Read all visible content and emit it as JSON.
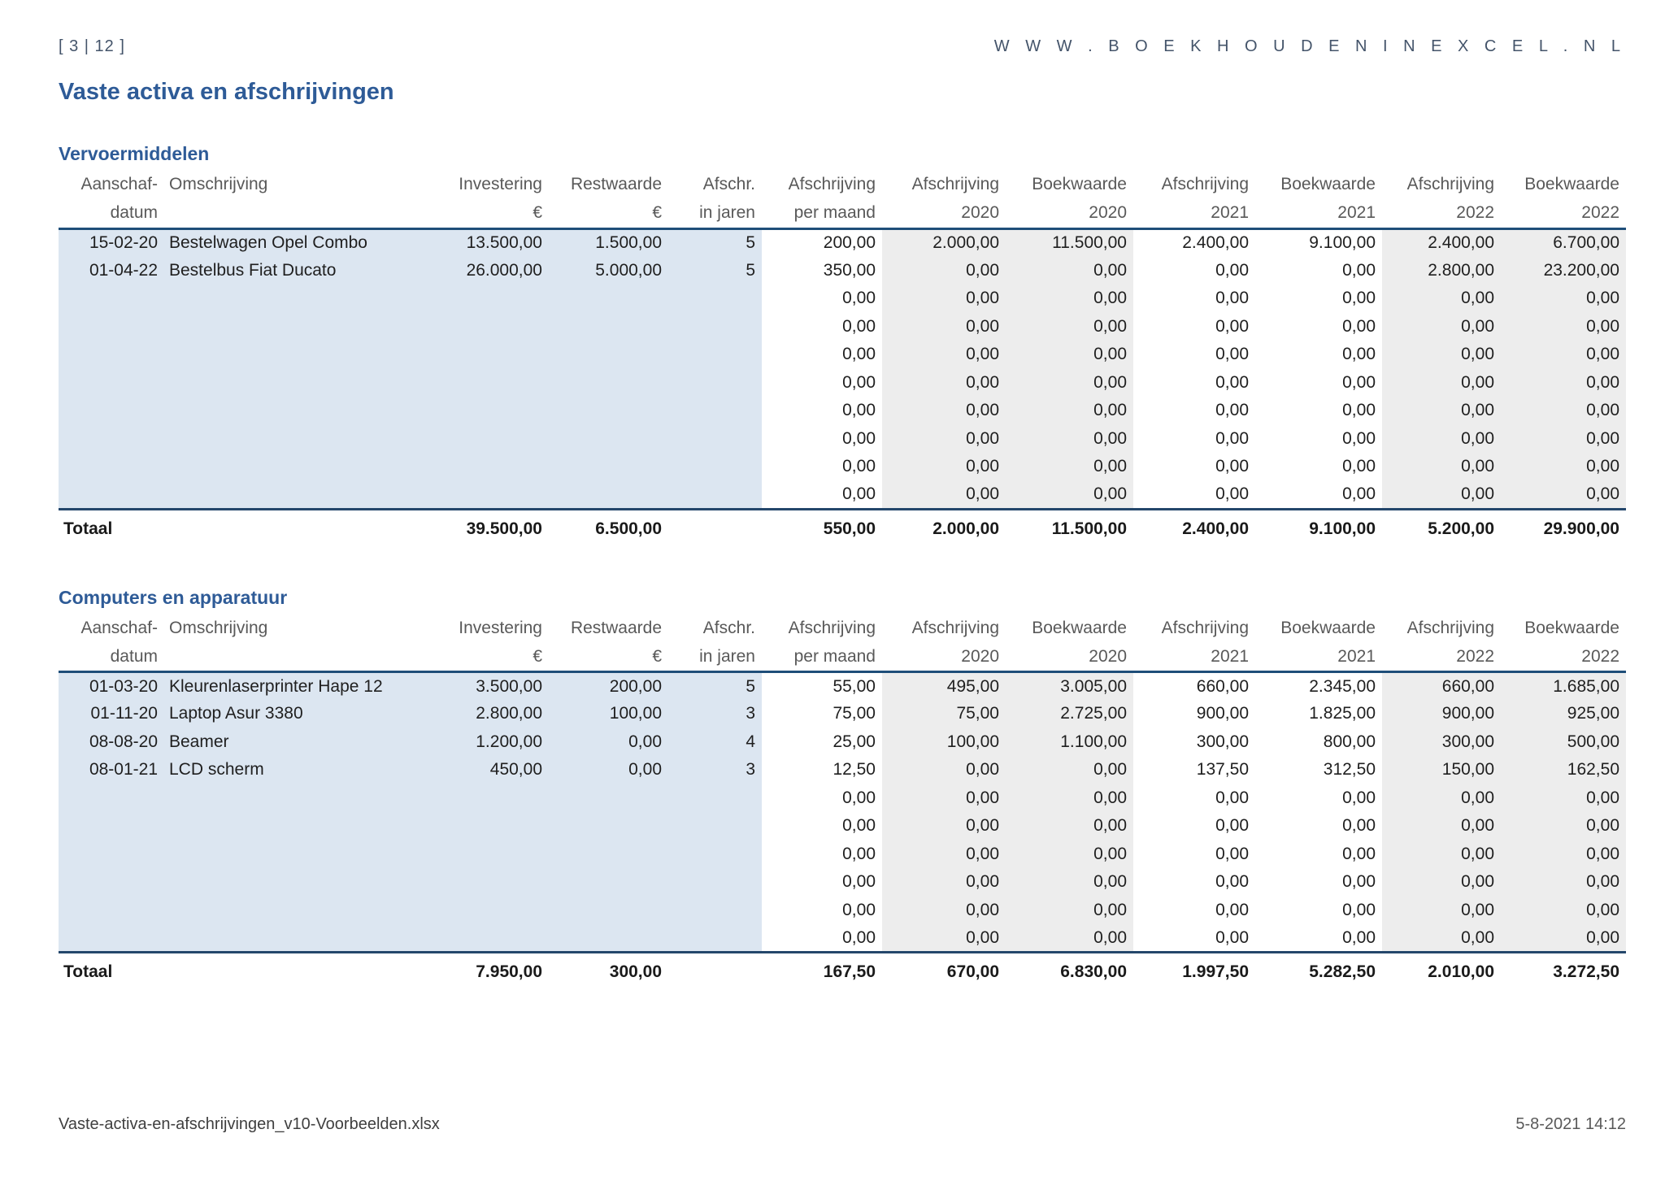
{
  "page": {
    "page_indicator": "[ 3 | 12 ]",
    "website": "W W W . B O E K H O U D E N I N E X C E L . N L",
    "title": "Vaste activa en afschrijvingen",
    "footer_left": "Vaste-activa-en-afschrijvingen_v10-Voorbeelden.xlsx",
    "footer_right": "5-8-2021 14:12"
  },
  "colors": {
    "accent_blue": "#2e5b97",
    "header_text_gray": "#595959",
    "data_text": "#1f1f1f",
    "cell_blue": "#dce6f1",
    "band_gray": "#ededed",
    "border_header": "#1f4e79",
    "border_total": "#24476b"
  },
  "table_headers": {
    "row1": [
      "Aanschaf-",
      "Omschrijving",
      "Investering",
      "Restwaarde",
      "Afschr.",
      "Afschrijving",
      "Afschrijving",
      "Boekwaarde",
      "Afschrijving",
      "Boekwaarde",
      "Afschrijving",
      "Boekwaarde"
    ],
    "row2": [
      "datum",
      "",
      "€",
      "€",
      "in jaren",
      "per maand",
      "2020",
      "2020",
      "2021",
      "2021",
      "2022",
      "2022"
    ]
  },
  "sections": [
    {
      "title": "Vervoermiddelen",
      "rows": [
        [
          "15-02-20",
          "Bestelwagen Opel Combo",
          "13.500,00",
          "1.500,00",
          "5",
          "200,00",
          "2.000,00",
          "11.500,00",
          "2.400,00",
          "9.100,00",
          "2.400,00",
          "6.700,00"
        ],
        [
          "01-04-22",
          "Bestelbus Fiat Ducato",
          "26.000,00",
          "5.000,00",
          "5",
          "350,00",
          "0,00",
          "0,00",
          "0,00",
          "0,00",
          "2.800,00",
          "23.200,00"
        ],
        [
          "",
          "",
          "",
          "",
          "",
          "0,00",
          "0,00",
          "0,00",
          "0,00",
          "0,00",
          "0,00",
          "0,00"
        ],
        [
          "",
          "",
          "",
          "",
          "",
          "0,00",
          "0,00",
          "0,00",
          "0,00",
          "0,00",
          "0,00",
          "0,00"
        ],
        [
          "",
          "",
          "",
          "",
          "",
          "0,00",
          "0,00",
          "0,00",
          "0,00",
          "0,00",
          "0,00",
          "0,00"
        ],
        [
          "",
          "",
          "",
          "",
          "",
          "0,00",
          "0,00",
          "0,00",
          "0,00",
          "0,00",
          "0,00",
          "0,00"
        ],
        [
          "",
          "",
          "",
          "",
          "",
          "0,00",
          "0,00",
          "0,00",
          "0,00",
          "0,00",
          "0,00",
          "0,00"
        ],
        [
          "",
          "",
          "",
          "",
          "",
          "0,00",
          "0,00",
          "0,00",
          "0,00",
          "0,00",
          "0,00",
          "0,00"
        ],
        [
          "",
          "",
          "",
          "",
          "",
          "0,00",
          "0,00",
          "0,00",
          "0,00",
          "0,00",
          "0,00",
          "0,00"
        ],
        [
          "",
          "",
          "",
          "",
          "",
          "0,00",
          "0,00",
          "0,00",
          "0,00",
          "0,00",
          "0,00",
          "0,00"
        ]
      ],
      "total": {
        "label": "Totaal",
        "values": [
          "39.500,00",
          "6.500,00",
          "",
          "550,00",
          "2.000,00",
          "11.500,00",
          "2.400,00",
          "9.100,00",
          "5.200,00",
          "29.900,00"
        ]
      }
    },
    {
      "title": "Computers en apparatuur",
      "rows": [
        [
          "01-03-20",
          "Kleurenlaserprinter Hape 12",
          "3.500,00",
          "200,00",
          "5",
          "55,00",
          "495,00",
          "3.005,00",
          "660,00",
          "2.345,00",
          "660,00",
          "1.685,00"
        ],
        [
          "01-11-20",
          "Laptop Asur 3380",
          "2.800,00",
          "100,00",
          "3",
          "75,00",
          "75,00",
          "2.725,00",
          "900,00",
          "1.825,00",
          "900,00",
          "925,00"
        ],
        [
          "08-08-20",
          "Beamer",
          "1.200,00",
          "0,00",
          "4",
          "25,00",
          "100,00",
          "1.100,00",
          "300,00",
          "800,00",
          "300,00",
          "500,00"
        ],
        [
          "08-01-21",
          "LCD scherm",
          "450,00",
          "0,00",
          "3",
          "12,50",
          "0,00",
          "0,00",
          "137,50",
          "312,50",
          "150,00",
          "162,50"
        ],
        [
          "",
          "",
          "",
          "",
          "",
          "0,00",
          "0,00",
          "0,00",
          "0,00",
          "0,00",
          "0,00",
          "0,00"
        ],
        [
          "",
          "",
          "",
          "",
          "",
          "0,00",
          "0,00",
          "0,00",
          "0,00",
          "0,00",
          "0,00",
          "0,00"
        ],
        [
          "",
          "",
          "",
          "",
          "",
          "0,00",
          "0,00",
          "0,00",
          "0,00",
          "0,00",
          "0,00",
          "0,00"
        ],
        [
          "",
          "",
          "",
          "",
          "",
          "0,00",
          "0,00",
          "0,00",
          "0,00",
          "0,00",
          "0,00",
          "0,00"
        ],
        [
          "",
          "",
          "",
          "",
          "",
          "0,00",
          "0,00",
          "0,00",
          "0,00",
          "0,00",
          "0,00",
          "0,00"
        ],
        [
          "",
          "",
          "",
          "",
          "",
          "0,00",
          "0,00",
          "0,00",
          "0,00",
          "0,00",
          "0,00",
          "0,00"
        ]
      ],
      "total": {
        "label": "Totaal",
        "values": [
          "7.950,00",
          "300,00",
          "",
          "167,50",
          "670,00",
          "6.830,00",
          "1.997,50",
          "5.282,50",
          "2.010,00",
          "3.272,50"
        ]
      }
    }
  ]
}
